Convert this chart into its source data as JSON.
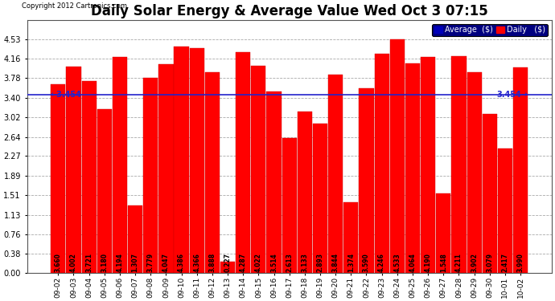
{
  "title": "Daily Solar Energy & Average Value Wed Oct 3 07:15",
  "copyright": "Copyright 2012 Cartronics.com",
  "categories": [
    "09-02",
    "09-03",
    "09-04",
    "09-05",
    "09-06",
    "09-07",
    "09-08",
    "09-09",
    "09-10",
    "09-11",
    "09-12",
    "09-13",
    "09-14",
    "09-15",
    "09-16",
    "09-17",
    "09-18",
    "09-19",
    "09-20",
    "09-21",
    "09-22",
    "09-23",
    "09-24",
    "09-25",
    "09-26",
    "09-27",
    "09-28",
    "09-29",
    "09-30",
    "10-01",
    "10-02"
  ],
  "values": [
    3.66,
    4.002,
    3.721,
    3.18,
    4.194,
    1.307,
    3.779,
    4.047,
    4.386,
    4.366,
    3.888,
    0.227,
    4.287,
    4.022,
    3.514,
    2.613,
    3.133,
    2.893,
    3.844,
    1.374,
    3.59,
    4.246,
    4.533,
    4.064,
    4.19,
    1.548,
    4.211,
    3.902,
    3.079,
    2.417,
    3.99
  ],
  "average": 3.454,
  "bar_color": "#ff0000",
  "avg_line_color": "#2222cc",
  "ylim": [
    0,
    4.91
  ],
  "yticks": [
    0.0,
    0.38,
    0.76,
    1.13,
    1.51,
    1.89,
    2.27,
    2.64,
    3.02,
    3.4,
    3.78,
    4.16,
    4.53
  ],
  "background_color": "#ffffff",
  "plot_bg_color": "#ffffff",
  "grid_color": "#aaaaaa",
  "title_fontsize": 12,
  "bar_edge_color": "#cc0000",
  "legend_avg_color": "#0000bb",
  "legend_daily_color": "#ff0000",
  "avg_label": "3.454",
  "value_label_fontsize": 5.5,
  "xlabel_fontsize": 6.5,
  "ylabel_fontsize": 7
}
